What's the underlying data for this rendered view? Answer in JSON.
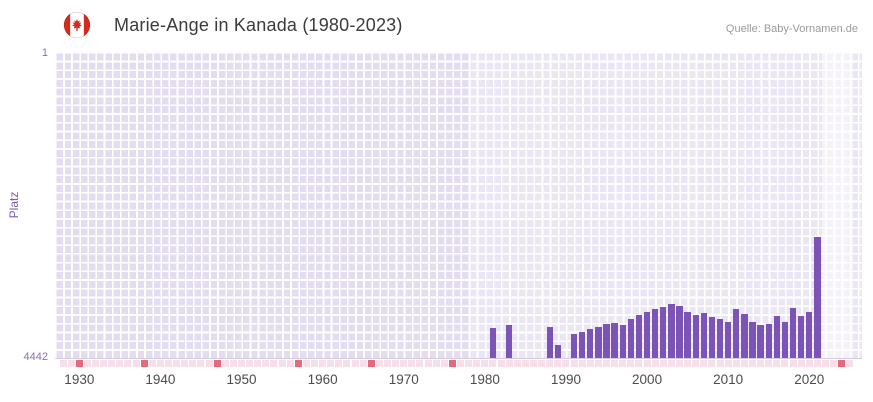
{
  "header": {
    "title": "Marie-Ange in Kanada (1980-2023)",
    "source": "Quelle: Baby-Vornamen.de",
    "flag": "canada-flag-icon"
  },
  "chart_data": {
    "type": "bar",
    "title": "Marie-Ange in Kanada (1980-2023)",
    "xlabel": "",
    "ylabel": "Platz",
    "grid": true,
    "legend_position": "none",
    "y_axis": {
      "min": 1,
      "max": 4442,
      "inverted": true,
      "top_tick": "1",
      "bottom_tick": "4442"
    },
    "x_axis": {
      "range": [
        1927.0,
        2026.5
      ],
      "ticks": [
        1930,
        1940,
        1950,
        1960,
        1970,
        1980,
        1990,
        2000,
        2010,
        2020
      ]
    },
    "series": [
      {
        "name": "Platz",
        "points": [
          {
            "year": 1981,
            "rank": 4007
          },
          {
            "year": 1983,
            "rank": 3963
          },
          {
            "year": 1988,
            "rank": 3992
          },
          {
            "year": 1989,
            "rank": 4253
          },
          {
            "year": 1991,
            "rank": 4094
          },
          {
            "year": 1992,
            "rank": 4065
          },
          {
            "year": 1993,
            "rank": 4021
          },
          {
            "year": 1994,
            "rank": 3992
          },
          {
            "year": 1995,
            "rank": 3949
          },
          {
            "year": 1996,
            "rank": 3934
          },
          {
            "year": 1997,
            "rank": 3963
          },
          {
            "year": 1998,
            "rank": 3876
          },
          {
            "year": 1999,
            "rank": 3818
          },
          {
            "year": 2000,
            "rank": 3774
          },
          {
            "year": 2001,
            "rank": 3731
          },
          {
            "year": 2002,
            "rank": 3702
          },
          {
            "year": 2003,
            "rank": 3658
          },
          {
            "year": 2004,
            "rank": 3687
          },
          {
            "year": 2005,
            "rank": 3774
          },
          {
            "year": 2006,
            "rank": 3818
          },
          {
            "year": 2007,
            "rank": 3789
          },
          {
            "year": 2008,
            "rank": 3847
          },
          {
            "year": 2009,
            "rank": 3876
          },
          {
            "year": 2010,
            "rank": 3920
          },
          {
            "year": 2011,
            "rank": 3731
          },
          {
            "year": 2012,
            "rank": 3803
          },
          {
            "year": 2013,
            "rank": 3920
          },
          {
            "year": 2014,
            "rank": 3963
          },
          {
            "year": 2015,
            "rank": 3949
          },
          {
            "year": 2016,
            "rank": 3832
          },
          {
            "year": 2017,
            "rank": 3920
          },
          {
            "year": 2018,
            "rank": 3716
          },
          {
            "year": 2019,
            "rank": 3832
          },
          {
            "year": 2020,
            "rank": 3774
          },
          {
            "year": 2021,
            "rank": 2686
          }
        ]
      }
    ],
    "marker_strip": {
      "start": 1928,
      "end": 2025
    },
    "no_rank_years": [
      1930,
      1938,
      1947,
      1957,
      1966,
      1976,
      2024
    ],
    "shading": {
      "pre_data_until": 1978,
      "recent_band": [
        2021.6,
        2025.4
      ]
    },
    "colors": {
      "bar_color": "#7c54b5",
      "plot_bg": "#e3ddef",
      "grid_line": "#ffffff",
      "marker_red": "#e4697d",
      "marker_pink": "#f6dfe9",
      "axis_label": "#8a6fb0",
      "ylabel_color": "#7a5ab0",
      "tick_label": "#4c4c4c",
      "title_color": "#3b3b3b",
      "source_color": "#9b9b9b",
      "flag_red": "#d52b1e"
    }
  }
}
